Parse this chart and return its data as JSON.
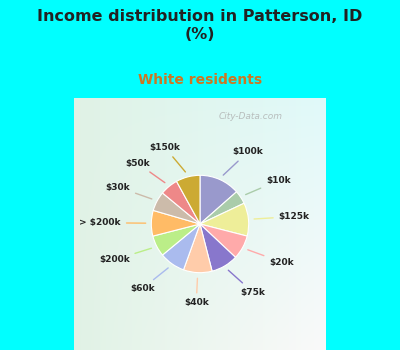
{
  "title": "Income distribution in Patterson, ID\n(%)",
  "subtitle": "White residents",
  "title_color": "#222222",
  "subtitle_color": "#cc7722",
  "background_top": "#00ffff",
  "background_chart_tl": "#e8f5ee",
  "background_chart_br": "#d0eedd",
  "watermark": "City-Data.com",
  "labels": [
    "$100k",
    "$10k",
    "$125k",
    "$20k",
    "$75k",
    "$40k",
    "$60k",
    "$200k",
    "> $200k",
    "$30k",
    "$50k",
    "$150k"
  ],
  "values": [
    13.5,
    4.5,
    11.0,
    8.0,
    9.0,
    9.5,
    8.5,
    7.0,
    8.5,
    6.5,
    6.0,
    8.0
  ],
  "colors": [
    "#9999cc",
    "#aaccaa",
    "#eeee99",
    "#ffaaaa",
    "#8877cc",
    "#ffccaa",
    "#aabbee",
    "#bbee88",
    "#ffbb66",
    "#ccbbaa",
    "#ee8888",
    "#ccaa33"
  ],
  "figsize": [
    4.0,
    3.5
  ],
  "dpi": 100
}
